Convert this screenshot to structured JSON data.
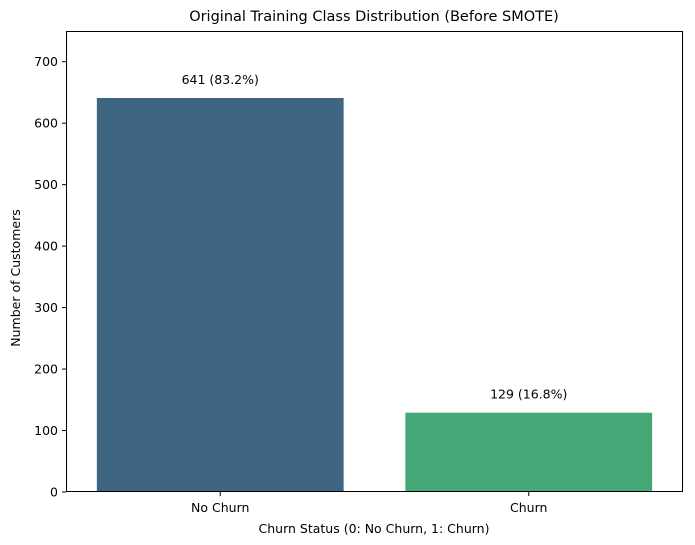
{
  "chart_data": {
    "type": "bar",
    "title": "Original Training Class Distribution (Before SMOTE)",
    "xlabel": "Churn Status (0: No Churn, 1: Churn)",
    "ylabel": "Number of Customers",
    "categories": [
      "No Churn",
      "Churn"
    ],
    "values": [
      641,
      129
    ],
    "data_labels": [
      "641 (83.2%)",
      "129 (16.8%)"
    ],
    "colors": [
      "#3e6683",
      "#44a775"
    ],
    "ylim": [
      0,
      750
    ],
    "yticks": [
      0,
      100,
      200,
      300,
      400,
      500,
      600,
      700
    ],
    "grid": false,
    "legend": "none"
  }
}
